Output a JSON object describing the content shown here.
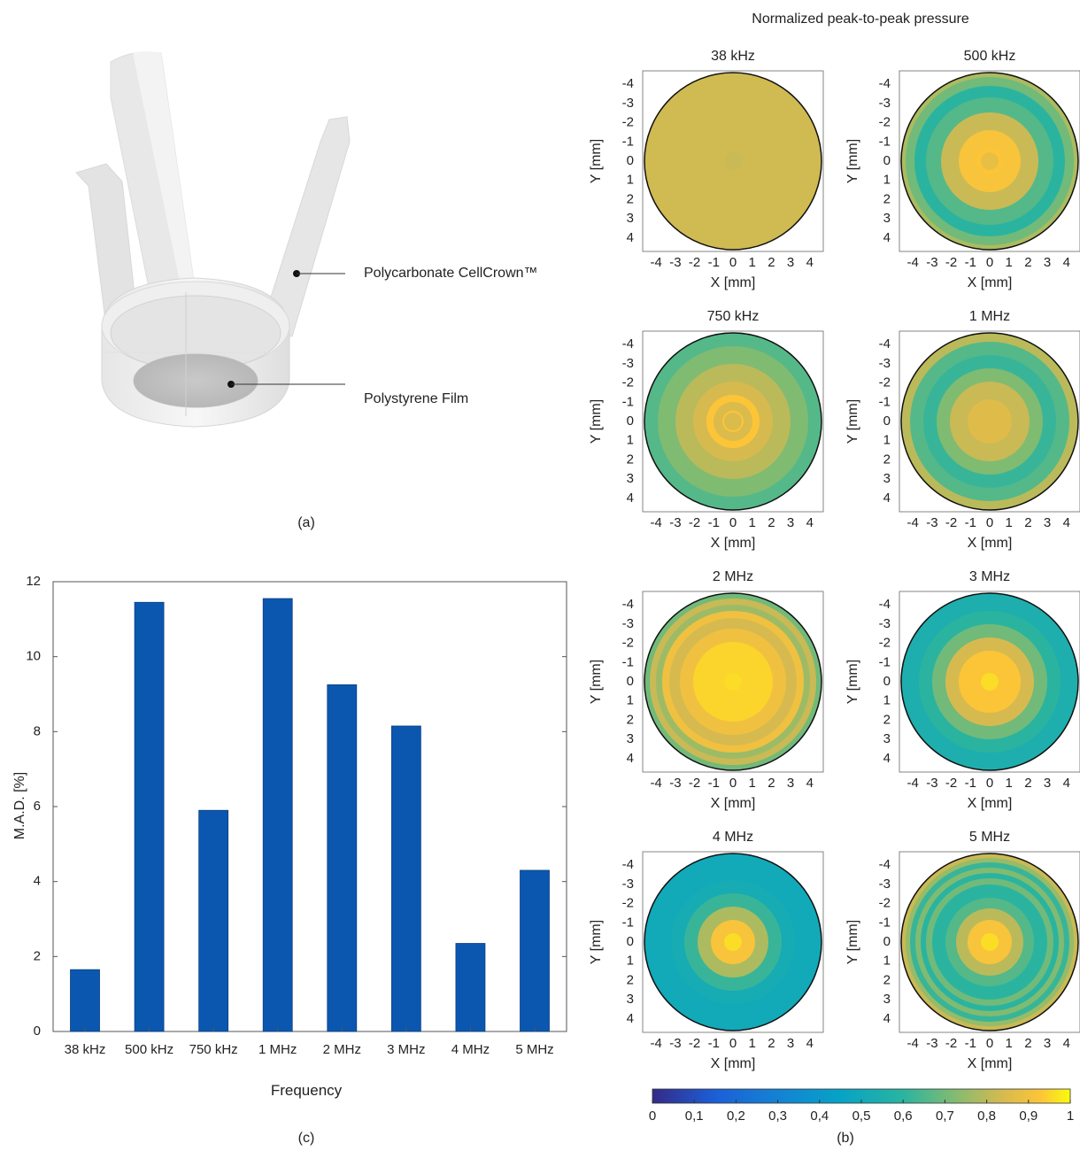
{
  "panel_a": {
    "caption": "(a)",
    "labels": [
      "Polycarbonate CellCrown™",
      "Polystyrene Film"
    ]
  },
  "panel_b": {
    "caption": "(b)",
    "title": "Normalized peak-to-peak pressure",
    "xlabel": "X [mm]",
    "ylabel": "Y [mm]",
    "ticks": [
      "-4",
      "-3",
      "-2",
      "-1",
      "0",
      "1",
      "2",
      "3",
      "4"
    ],
    "maps": [
      {
        "title": "38 kHz",
        "center": 0.82,
        "rings": [
          [
            0.0,
            0.82
          ],
          [
            0.12,
            0.83
          ],
          [
            1.0,
            0.83
          ]
        ]
      },
      {
        "title": "500 kHz",
        "center": 0.88,
        "rings": [
          [
            0.0,
            0.88
          ],
          [
            0.15,
            0.93
          ],
          [
            0.35,
            0.92
          ],
          [
            0.55,
            0.82
          ],
          [
            0.72,
            0.66
          ],
          [
            0.85,
            0.6
          ],
          [
            0.95,
            0.7
          ],
          [
            1.0,
            0.78
          ]
        ]
      },
      {
        "title": "750 kHz",
        "center": 0.85,
        "rings": [
          [
            0.0,
            0.86
          ],
          [
            0.12,
            0.93
          ],
          [
            0.22,
            0.85
          ],
          [
            0.3,
            0.93
          ],
          [
            0.45,
            0.84
          ],
          [
            0.65,
            0.8
          ],
          [
            0.85,
            0.72
          ],
          [
            1.0,
            0.66
          ]
        ]
      },
      {
        "title": "1 MHz",
        "center": 0.86,
        "rings": [
          [
            0.0,
            0.87
          ],
          [
            0.25,
            0.86
          ],
          [
            0.45,
            0.82
          ],
          [
            0.6,
            0.72
          ],
          [
            0.75,
            0.62
          ],
          [
            0.9,
            0.66
          ],
          [
            1.0,
            0.8
          ]
        ]
      },
      {
        "title": "2 MHz",
        "center": 0.96,
        "rings": [
          [
            0.0,
            0.96
          ],
          [
            0.45,
            0.95
          ],
          [
            0.6,
            0.9
          ],
          [
            0.72,
            0.84
          ],
          [
            0.8,
            0.9
          ],
          [
            0.87,
            0.76
          ],
          [
            0.94,
            0.82
          ],
          [
            1.0,
            0.7
          ]
        ]
      },
      {
        "title": "3 MHz",
        "center": 0.96,
        "rings": [
          [
            0.0,
            0.96
          ],
          [
            0.35,
            0.93
          ],
          [
            0.5,
            0.84
          ],
          [
            0.65,
            0.7
          ],
          [
            0.8,
            0.6
          ],
          [
            1.0,
            0.55
          ]
        ]
      },
      {
        "title": "4 MHz",
        "center": 0.96,
        "rings": [
          [
            0.0,
            0.96
          ],
          [
            0.25,
            0.92
          ],
          [
            0.4,
            0.78
          ],
          [
            0.55,
            0.62
          ],
          [
            0.7,
            0.52
          ],
          [
            1.0,
            0.5
          ]
        ]
      },
      {
        "title": "5 MHz",
        "center": 0.96,
        "rings": [
          [
            0.0,
            0.96
          ],
          [
            0.25,
            0.92
          ],
          [
            0.38,
            0.8
          ],
          [
            0.5,
            0.66
          ],
          [
            0.65,
            0.6
          ],
          [
            0.72,
            0.7
          ],
          [
            0.78,
            0.6
          ],
          [
            0.84,
            0.72
          ],
          [
            0.9,
            0.62
          ],
          [
            0.95,
            0.75
          ],
          [
            1.0,
            0.82
          ]
        ]
      }
    ],
    "colorbar": {
      "ticks": [
        "0",
        "0,1",
        "0,2",
        "0,3",
        "0,4",
        "0,5",
        "0,6",
        "0,7",
        "0,8",
        "0,9",
        "1"
      ],
      "range": [
        0,
        1
      ]
    }
  },
  "chart_data": {
    "type": "bar",
    "caption": "(c)",
    "categories": [
      "38 kHz",
      "500 kHz",
      "750 kHz",
      "1 MHz",
      "2 MHz",
      "3 MHz",
      "4 MHz",
      "5 MHz"
    ],
    "values": [
      1.65,
      11.45,
      5.9,
      11.55,
      9.25,
      8.15,
      2.35,
      4.3
    ],
    "xlabel": "Frequency",
    "ylabel": "M.A.D. [%]",
    "ylim": [
      0,
      12
    ],
    "yticks": [
      0,
      2,
      4,
      6,
      8,
      10,
      12
    ],
    "bar_color": "#0b57b0",
    "grid": false
  }
}
